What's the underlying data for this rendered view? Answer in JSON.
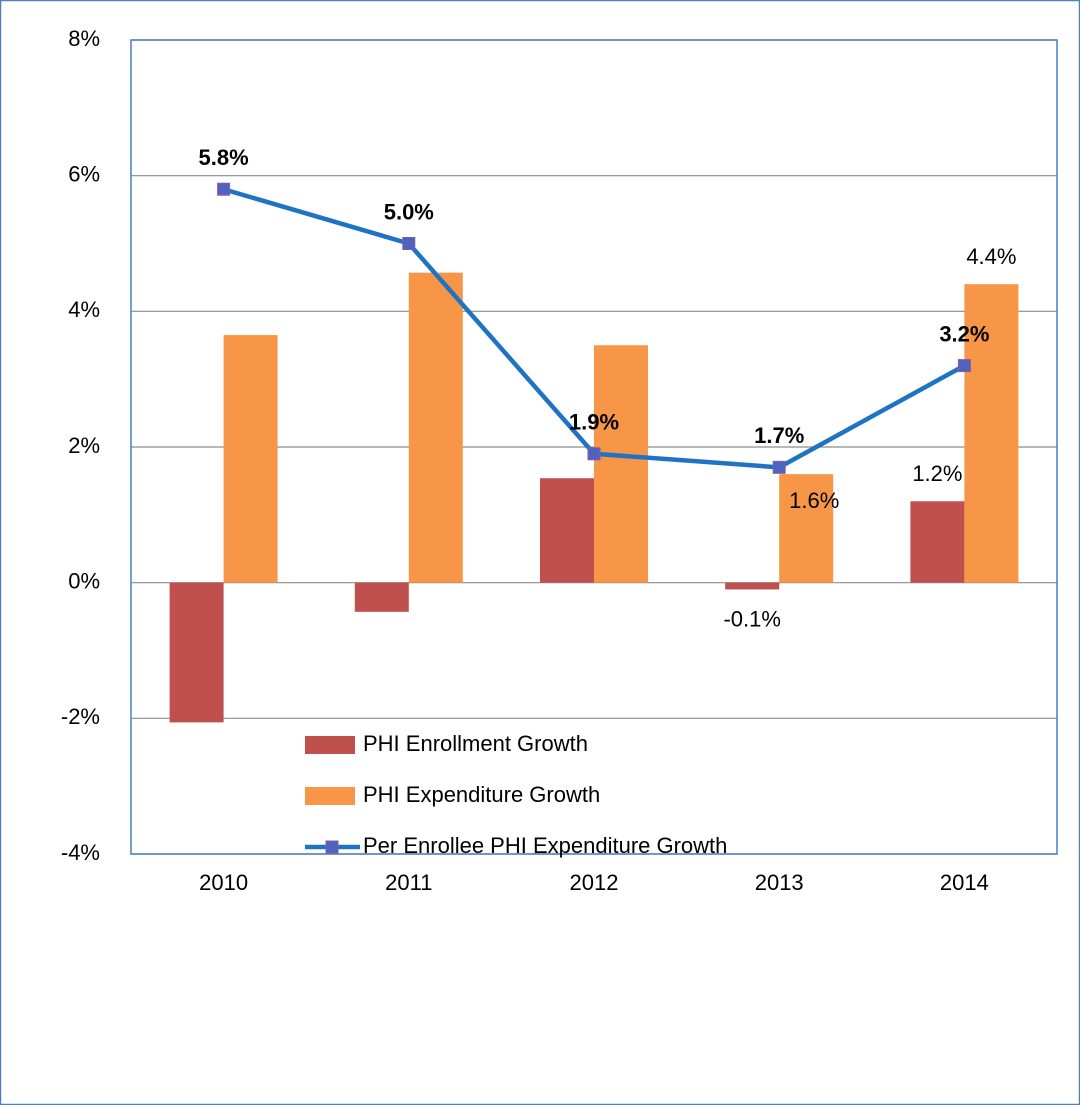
{
  "chart_data": {
    "type": "bar_line",
    "categories": [
      "2010",
      "2011",
      "2012",
      "2013",
      "2014"
    ],
    "series": [
      {
        "name": "PHI Enrollment Growth",
        "type": "bar",
        "color": "#c0504d",
        "values": [
          -2.06,
          -0.43,
          1.54,
          -0.1,
          1.2
        ],
        "value_labels": [
          null,
          null,
          null,
          "-0.1%",
          "1.2%"
        ]
      },
      {
        "name": "PHI Expenditure Growth",
        "type": "bar",
        "color": "#f79646",
        "values": [
          3.65,
          4.57,
          3.5,
          1.6,
          4.4
        ],
        "value_labels": [
          null,
          null,
          null,
          "1.6%",
          "4.4%"
        ]
      },
      {
        "name": "Per Enrollee PHI Expenditure Growth",
        "type": "line",
        "color": "#1f73c4",
        "marker_color": "#4f62c0",
        "values": [
          5.8,
          5.0,
          1.9,
          1.7,
          3.2
        ],
        "value_labels": [
          "5.8%",
          "5.0%",
          "1.9%",
          "1.7%",
          "3.2%"
        ]
      }
    ],
    "ylim": [
      -4,
      8
    ],
    "yticks": [
      {
        "value": -4,
        "label": "-4%"
      },
      {
        "value": -2,
        "label": "-2%"
      },
      {
        "value": 0,
        "label": "0%"
      },
      {
        "value": 2,
        "label": "2%"
      },
      {
        "value": 4,
        "label": "4%"
      },
      {
        "value": 6,
        "label": "6%"
      },
      {
        "value": 8,
        "label": "8%"
      }
    ],
    "grid": true,
    "legend": "bottom"
  }
}
